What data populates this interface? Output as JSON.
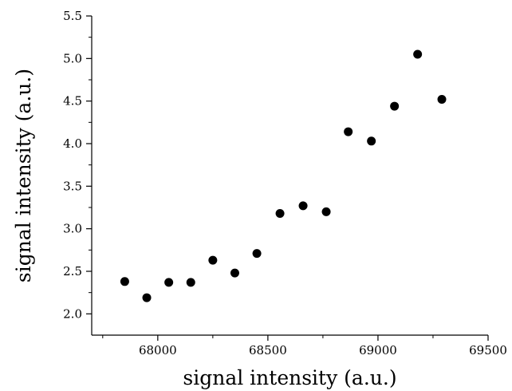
{
  "chart_data": {
    "type": "scatter",
    "xlabel": "signal intensity (a.u.)",
    "ylabel": "signal intensity (a.u.)",
    "xlim": [
      67700,
      69500
    ],
    "ylim": [
      1.75,
      5.5
    ],
    "xticks": [
      68000,
      68500,
      69000,
      69500
    ],
    "yticks": [
      2.0,
      2.5,
      3.0,
      3.5,
      4.0,
      4.5,
      5.0,
      5.5
    ],
    "xtick_labels": [
      "68000",
      "68500",
      "69000",
      "69500"
    ],
    "ytick_labels": [
      "2.0",
      "2.5",
      "3.0",
      "3.5",
      "4.0",
      "4.5",
      "5.0",
      "5.5"
    ],
    "grid": false,
    "marker_color": "#000000",
    "points": [
      {
        "x": 67850,
        "y": 2.38
      },
      {
        "x": 67950,
        "y": 2.19
      },
      {
        "x": 68050,
        "y": 2.37
      },
      {
        "x": 68150,
        "y": 2.37
      },
      {
        "x": 68250,
        "y": 2.63
      },
      {
        "x": 68350,
        "y": 2.48
      },
      {
        "x": 68450,
        "y": 2.71
      },
      {
        "x": 68555,
        "y": 3.18
      },
      {
        "x": 68660,
        "y": 3.27
      },
      {
        "x": 68765,
        "y": 3.2
      },
      {
        "x": 68865,
        "y": 4.14
      },
      {
        "x": 68970,
        "y": 4.03
      },
      {
        "x": 69075,
        "y": 4.44
      },
      {
        "x": 69180,
        "y": 5.05
      },
      {
        "x": 69290,
        "y": 4.52
      }
    ]
  }
}
